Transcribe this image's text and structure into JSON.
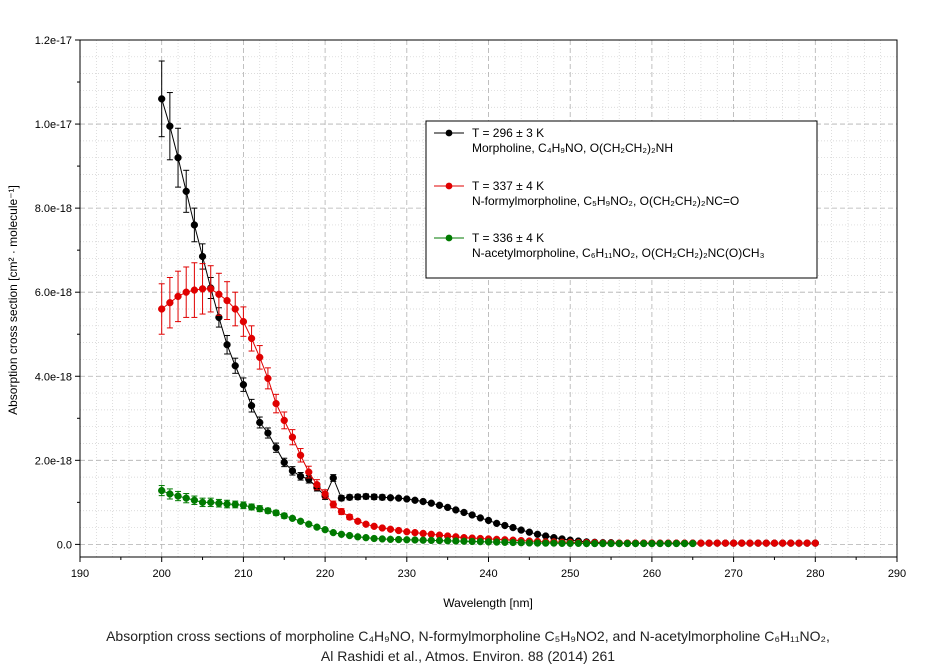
{
  "chart_data": {
    "type": "scatter",
    "xlabel": "Wavelength [nm]",
    "ylabel": "Absorption cross section [cm² · molecule⁻¹]",
    "xlim": [
      190,
      290
    ],
    "ylim": [
      -3e-19,
      1.2e-17
    ],
    "xticks": [
      "190",
      "200",
      "210",
      "220",
      "230",
      "240",
      "250",
      "260",
      "270",
      "280",
      "290"
    ],
    "yticks": [
      {
        "v": 0,
        "label": "0.0"
      },
      {
        "v": 2e-18,
        "label": "2.0e-18"
      },
      {
        "v": 4e-18,
        "label": "4.0e-18"
      },
      {
        "v": 6e-18,
        "label": "6.0e-18"
      },
      {
        "v": 8e-18,
        "label": "8.0e-18"
      },
      {
        "v": 1e-17,
        "label": "1.0e-17"
      },
      {
        "v": 1.2e-17,
        "label": "1.2e-17"
      }
    ],
    "grid": true,
    "legend_position": "top-right",
    "series": [
      {
        "name": "T = 296 ± 3 K",
        "color": "#000000",
        "legend_line1": "T = 296 ± 3 K",
        "legend_line2": "Morpholine, C₄H₉NO, O(CH₂CH₂)₂NH",
        "x": [
          200,
          201,
          202,
          203,
          204,
          205,
          206,
          207,
          208,
          209,
          210,
          211,
          212,
          213,
          214,
          215,
          216,
          217,
          218,
          219,
          220,
          221,
          222,
          223,
          224,
          225,
          226,
          227,
          228,
          229,
          230,
          231,
          232,
          233,
          234,
          235,
          236,
          237,
          238,
          239,
          240,
          241,
          242,
          243,
          244,
          245,
          246,
          247,
          248,
          249,
          250,
          251,
          252,
          253,
          254,
          255,
          256,
          257,
          258,
          259,
          260,
          261,
          262,
          263,
          264,
          265,
          266,
          267,
          268,
          269,
          270,
          271,
          272,
          273,
          274,
          275,
          276,
          277,
          278,
          279,
          280
        ],
        "y": [
          1.06e-17,
          9.95e-18,
          9.2e-18,
          8.4e-18,
          7.6e-18,
          6.85e-18,
          6.1e-18,
          5.4e-18,
          4.75e-18,
          4.25e-18,
          3.8e-18,
          3.3e-18,
          2.9e-18,
          2.65e-18,
          2.3e-18,
          1.95e-18,
          1.75e-18,
          1.62e-18,
          1.55e-18,
          1.35e-18,
          1.15e-18,
          1.58e-18,
          1.1e-18,
          1.12e-18,
          1.13e-18,
          1.14e-18,
          1.13e-18,
          1.12e-18,
          1.11e-18,
          1.1e-18,
          1.08e-18,
          1.05e-18,
          1.02e-18,
          9.8e-19,
          9.3e-19,
          8.8e-19,
          8.2e-19,
          7.6e-19,
          7e-19,
          6.3e-19,
          5.7e-19,
          5e-19,
          4.5e-19,
          4e-19,
          3.4e-19,
          2.9e-19,
          2.4e-19,
          2e-19,
          1.6e-19,
          1.3e-19,
          1e-19,
          8e-20,
          6e-20,
          5e-20,
          4e-20,
          4e-20,
          3e-20,
          3e-20,
          3e-20,
          3e-20,
          3e-20,
          3e-20,
          3e-20,
          3e-20,
          3e-20,
          3e-20,
          3e-20,
          3e-20,
          3e-20,
          3e-20,
          3e-20,
          3e-20,
          3e-20,
          3e-20,
          3e-20,
          3e-20,
          3e-20,
          3e-20,
          3e-20,
          3e-20,
          3e-20
        ],
        "err": [
          9e-19,
          8e-19,
          7e-19,
          5e-19,
          4e-19,
          3e-19,
          2.5e-19,
          2.3e-19,
          2.2e-19,
          1.8e-19,
          1.6e-19,
          1.5e-19,
          1.3e-19,
          1.2e-19,
          1.1e-19,
          1e-19,
          1e-19,
          9e-20,
          9e-20,
          8e-20,
          8e-20,
          8e-20,
          6e-20,
          6e-20,
          6e-20,
          6e-20,
          6e-20,
          6e-20,
          5e-20,
          5e-20,
          5e-20,
          5e-20,
          5e-20,
          5e-20,
          4e-20,
          4e-20,
          4e-20,
          4e-20,
          4e-20,
          4e-20,
          3e-20,
          3e-20,
          3e-20,
          3e-20,
          3e-20,
          3e-20,
          3e-20,
          3e-20,
          3e-20,
          2e-20,
          2e-20,
          2e-20,
          2e-20,
          2e-20,
          2e-20,
          2e-20,
          2e-20,
          2e-20,
          2e-20,
          2e-20,
          2e-20,
          2e-20,
          2e-20,
          2e-20,
          2e-20,
          2e-20,
          2e-20,
          2e-20,
          2e-20,
          2e-20,
          2e-20,
          2e-20,
          2e-20,
          2e-20,
          2e-20,
          2e-20,
          2e-20,
          2e-20,
          2e-20,
          2e-20,
          2e-20
        ]
      },
      {
        "name": "T = 337 ± 4 K",
        "color": "#e00000",
        "legend_line1": "T = 337 ± 4 K",
        "legend_line2": "N-formylmorpholine, C₅H₉NO₂, O(CH₂CH₂)₂NC=O",
        "x": [
          200,
          201,
          202,
          203,
          204,
          205,
          206,
          207,
          208,
          209,
          210,
          211,
          212,
          213,
          214,
          215,
          216,
          217,
          218,
          219,
          220,
          221,
          222,
          223,
          224,
          225,
          226,
          227,
          228,
          229,
          230,
          231,
          232,
          233,
          234,
          235,
          236,
          237,
          238,
          239,
          240,
          241,
          242,
          243,
          244,
          245,
          246,
          247,
          248,
          249,
          250,
          251,
          252,
          253,
          254,
          255,
          256,
          257,
          258,
          259,
          260,
          261,
          262,
          263,
          264,
          265,
          266,
          267,
          268,
          269,
          270,
          271,
          272,
          273,
          274,
          275,
          276,
          277,
          278,
          279,
          280
        ],
        "y": [
          5.6e-18,
          5.75e-18,
          5.9e-18,
          6e-18,
          6.05e-18,
          6.08e-18,
          6.08e-18,
          5.95e-18,
          5.8e-18,
          5.6e-18,
          5.3e-18,
          4.9e-18,
          4.45e-18,
          3.95e-18,
          3.35e-18,
          2.95e-18,
          2.55e-18,
          2.12e-18,
          1.72e-18,
          1.42e-18,
          1.2e-18,
          9.5e-19,
          7.8e-19,
          6.5e-19,
          5.5e-19,
          4.8e-19,
          4.3e-19,
          3.9e-19,
          3.6e-19,
          3.3e-19,
          3e-19,
          2.8e-19,
          2.6e-19,
          2.4e-19,
          2.2e-19,
          2e-19,
          1.8e-19,
          1.6e-19,
          1.5e-19,
          1.4e-19,
          1.3e-19,
          1.2e-19,
          1.1e-19,
          1e-19,
          9e-20,
          8e-20,
          7e-20,
          6e-20,
          6e-20,
          5e-20,
          5e-20,
          4e-20,
          4e-20,
          4e-20,
          3e-20,
          3e-20,
          3e-20,
          3e-20,
          3e-20,
          3e-20,
          3e-20,
          3e-20,
          3e-20,
          3e-20,
          3e-20,
          3e-20,
          3e-20,
          3e-20,
          3e-20,
          3e-20,
          3e-20,
          3e-20,
          3e-20,
          3e-20,
          3e-20,
          3e-20,
          3e-20,
          3e-20,
          3e-20,
          3e-20,
          3e-20
        ],
        "err": [
          6e-19,
          6e-19,
          6e-19,
          6e-19,
          6.5e-19,
          6e-19,
          5.5e-19,
          5e-19,
          4.5e-19,
          4e-19,
          3.5e-19,
          3e-19,
          2.8e-19,
          2.5e-19,
          2.2e-19,
          2e-19,
          1.8e-19,
          1.6e-19,
          1.4e-19,
          1.2e-19,
          1e-19,
          8e-20,
          7e-20,
          6e-20,
          5e-20,
          5e-20,
          4e-20,
          4e-20,
          4e-20,
          3e-20,
          3e-20,
          3e-20,
          3e-20,
          3e-20,
          3e-20,
          3e-20,
          3e-20,
          3e-20,
          3e-20,
          3e-20,
          3e-20,
          3e-20,
          3e-20,
          3e-20,
          3e-20,
          3e-20,
          3e-20,
          3e-20,
          3e-20,
          3e-20,
          3e-20,
          3e-20,
          3e-20,
          3e-20,
          3e-20,
          3e-20,
          3e-20,
          3e-20,
          3e-20,
          3e-20,
          3e-20,
          3e-20,
          3e-20,
          3e-20,
          3e-20,
          3e-20,
          3e-20,
          3e-20,
          3e-20,
          3e-20,
          3e-20,
          3e-20,
          3e-20,
          3e-20,
          3e-20,
          3e-20,
          3e-20,
          3e-20,
          3e-20,
          3e-20,
          3e-20
        ]
      },
      {
        "name": "T = 336 ± 4 K",
        "color": "#007a00",
        "legend_line1": "T = 336 ± 4 K",
        "legend_line2": "N-acetylmorpholine, C₆H₁₁NO₂, O(CH₂CH₂)₂NC(O)CH₃",
        "x": [
          200,
          201,
          202,
          203,
          204,
          205,
          206,
          207,
          208,
          209,
          210,
          211,
          212,
          213,
          214,
          215,
          216,
          217,
          218,
          219,
          220,
          221,
          222,
          223,
          224,
          225,
          226,
          227,
          228,
          229,
          230,
          231,
          232,
          233,
          234,
          235,
          236,
          237,
          238,
          239,
          240,
          241,
          242,
          243,
          244,
          245,
          246,
          247,
          248,
          249,
          250,
          251,
          252,
          253,
          254,
          255,
          256,
          257,
          258,
          259,
          260,
          261,
          262,
          263,
          264,
          265
        ],
        "y": [
          1.28e-18,
          1.2e-18,
          1.15e-18,
          1.1e-18,
          1.05e-18,
          1e-18,
          1e-18,
          9.8e-19,
          9.6e-19,
          9.5e-19,
          9.3e-19,
          8.9e-19,
          8.5e-19,
          8e-19,
          7.5e-19,
          6.8e-19,
          6.2e-19,
          5.5e-19,
          4.8e-19,
          4.1e-19,
          3.5e-19,
          2.8e-19,
          2.4e-19,
          2.1e-19,
          1.8e-19,
          1.6e-19,
          1.4e-19,
          1.3e-19,
          1.2e-19,
          1.15e-19,
          1.1e-19,
          1.05e-19,
          1e-19,
          9.5e-20,
          9e-20,
          8.5e-20,
          8e-20,
          7.5e-20,
          7e-20,
          6.5e-20,
          6e-20,
          5.5e-20,
          5e-20,
          4.5e-20,
          4e-20,
          3.5e-20,
          3e-20,
          3e-20,
          3e-20,
          2.5e-20,
          2.5e-20,
          2.5e-20,
          2e-20,
          2e-20,
          2e-20,
          2e-20,
          2e-20,
          2e-20,
          2e-20,
          2e-20,
          2e-20,
          2e-20,
          2e-20,
          2e-20,
          2e-20,
          2e-20
        ],
        "err": [
          1.2e-19,
          1.2e-19,
          1.1e-19,
          1.1e-19,
          1e-19,
          1e-19,
          1e-19,
          9e-20,
          9e-20,
          8e-20,
          8e-20,
          7e-20,
          7e-20,
          6e-20,
          6e-20,
          6e-20,
          5e-20,
          5e-20,
          5e-20,
          4e-20,
          4e-20,
          3e-20,
          3e-20,
          3e-20,
          3e-20,
          3e-20,
          3e-20,
          3e-20,
          3e-20,
          3e-20,
          3e-20,
          3e-20,
          3e-20,
          3e-20,
          3e-20,
          3e-20,
          3e-20,
          3e-20,
          3e-20,
          3e-20,
          3e-20,
          3e-20,
          3e-20,
          3e-20,
          3e-20,
          3e-20,
          3e-20,
          3e-20,
          3e-20,
          3e-20,
          3e-20,
          3e-20,
          3e-20,
          3e-20,
          3e-20,
          3e-20,
          3e-20,
          3e-20,
          3e-20,
          3e-20,
          3e-20,
          3e-20,
          3e-20,
          3e-20,
          3e-20,
          3e-20
        ]
      }
    ]
  },
  "caption": {
    "line1": "Absorption cross sections of morpholine C₄H₉NO, N-formylmorpholine C₅H₉NO2, and N-acetylmorpholine C₆H₁₁NO₂,",
    "line2": "Al Rashidi et al., Atmos. Environ. 88 (2014) 261"
  }
}
